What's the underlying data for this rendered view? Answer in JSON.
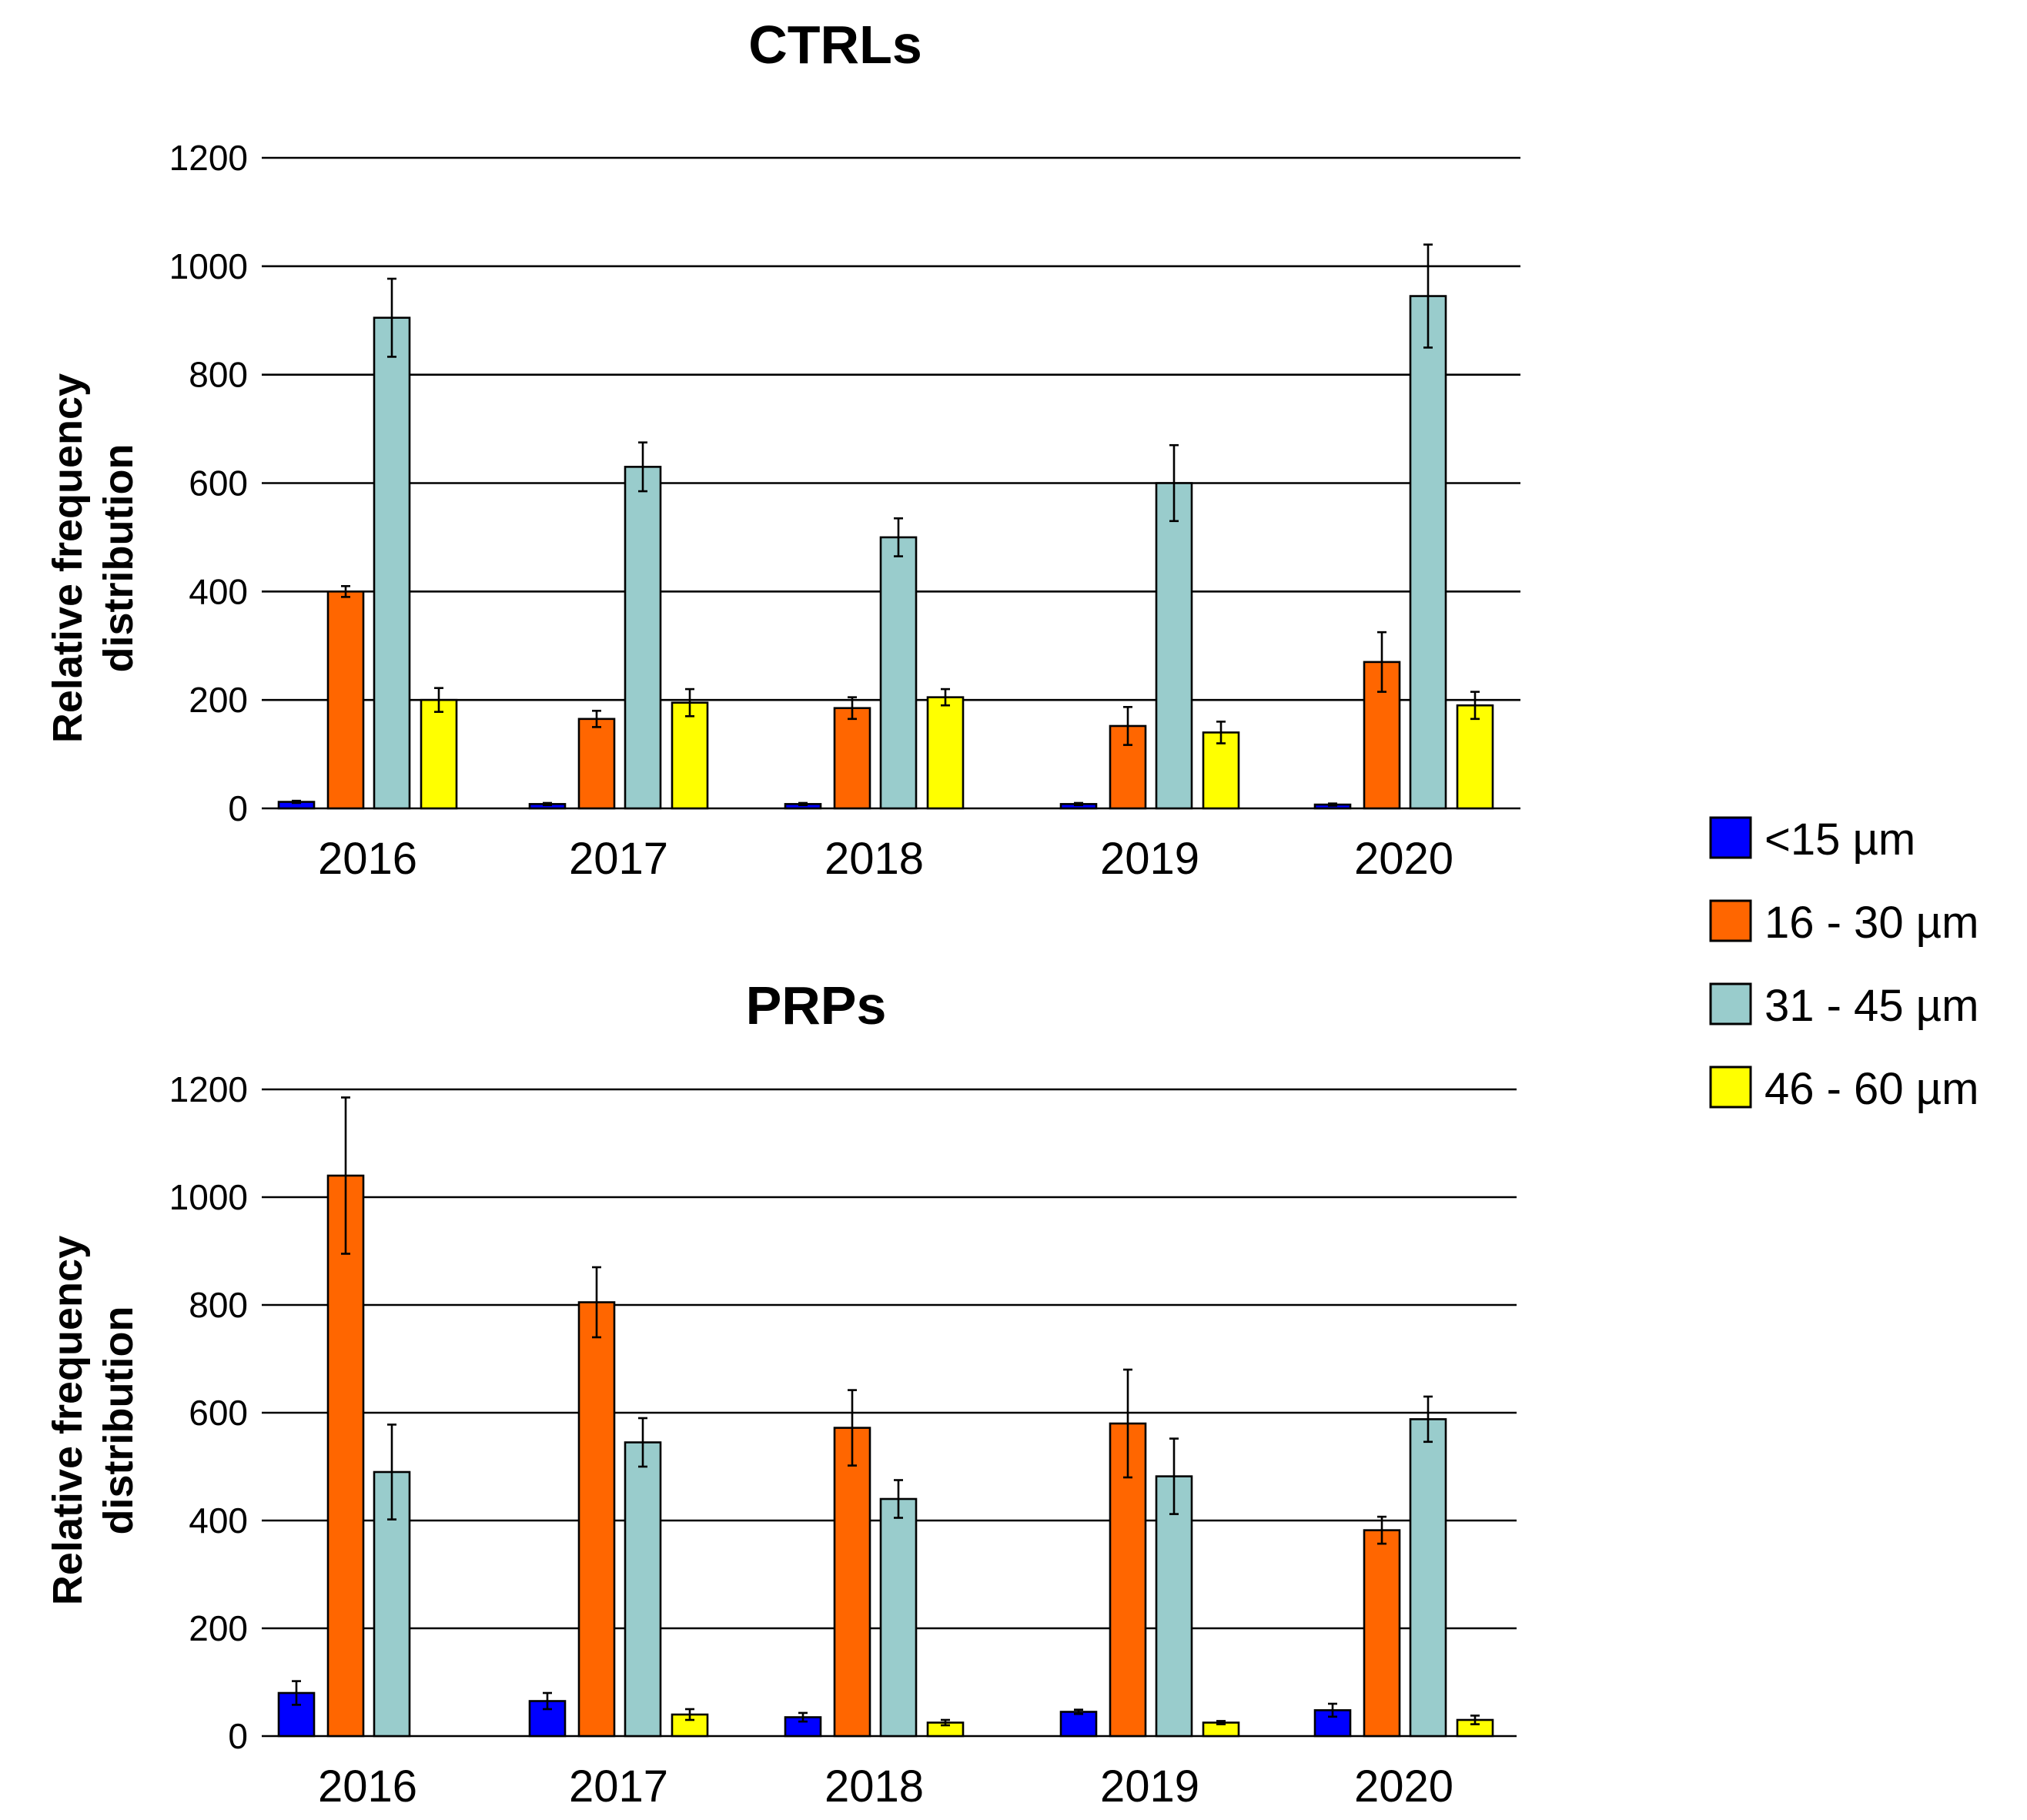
{
  "chart_data": [
    {
      "type": "bar",
      "title": "CTRLs",
      "ylabel": "Relative frequency distribution",
      "ylabel_lines": [
        "Relative frequency",
        "distribution"
      ],
      "xlabel": "",
      "ylim": [
        0,
        1200
      ],
      "yticks": [
        0,
        200,
        400,
        600,
        800,
        1000,
        1200
      ],
      "categories": [
        "2016",
        "2017",
        "2018",
        "2019",
        "2020"
      ],
      "series": [
        {
          "name": "<15 µm",
          "color": "#0000ff",
          "values": [
            12,
            8,
            8,
            8,
            7
          ],
          "errors": [
            2,
            2,
            2,
            2,
            2
          ]
        },
        {
          "name": "16 - 30 µm",
          "color": "#ff6600",
          "values": [
            400,
            165,
            185,
            152,
            270
          ],
          "errors": [
            10,
            15,
            20,
            35,
            55
          ]
        },
        {
          "name": "31 - 45 µm",
          "color": "#99cccc",
          "values": [
            905,
            630,
            500,
            600,
            945
          ],
          "errors": [
            72,
            45,
            35,
            70,
            95
          ]
        },
        {
          "name": "46 - 60 µm",
          "color": "#ffff00",
          "values": [
            200,
            195,
            205,
            140,
            190
          ],
          "errors": [
            22,
            25,
            15,
            20,
            25
          ]
        }
      ]
    },
    {
      "type": "bar",
      "title": "PRPs",
      "ylabel": "Relative frequency distribution",
      "ylabel_lines": [
        "Relative frequency",
        "distribution"
      ],
      "xlabel": "",
      "ylim": [
        0,
        1200
      ],
      "yticks": [
        0,
        200,
        400,
        600,
        800,
        1000,
        1200
      ],
      "categories": [
        "2016",
        "2017",
        "2018",
        "2019",
        "2020"
      ],
      "series": [
        {
          "name": "<15 µm",
          "color": "#0000ff",
          "values": [
            80,
            65,
            35,
            45,
            48
          ],
          "errors": [
            22,
            15,
            8,
            4,
            12
          ]
        },
        {
          "name": "16 - 30 µm",
          "color": "#ff6600",
          "values": [
            1040,
            805,
            572,
            580,
            382
          ],
          "errors": [
            145,
            65,
            70,
            100,
            25
          ]
        },
        {
          "name": "31 - 45 µm",
          "color": "#99cccc",
          "values": [
            490,
            545,
            440,
            482,
            588
          ],
          "errors": [
            88,
            45,
            35,
            70,
            42
          ]
        },
        {
          "name": "46 - 60 µm",
          "color": "#ffff00",
          "values": [
            0,
            40,
            25,
            25,
            30
          ],
          "errors": [
            0,
            10,
            5,
            3,
            8
          ]
        }
      ]
    }
  ],
  "legend": [
    {
      "label": "<15 µm",
      "color": "#0000ff"
    },
    {
      "label": "16 - 30 µm",
      "color": "#ff6600"
    },
    {
      "label": "31 - 45 µm",
      "color": "#99cccc"
    },
    {
      "label": "46 - 60 µm",
      "color": "#ffff00"
    }
  ]
}
